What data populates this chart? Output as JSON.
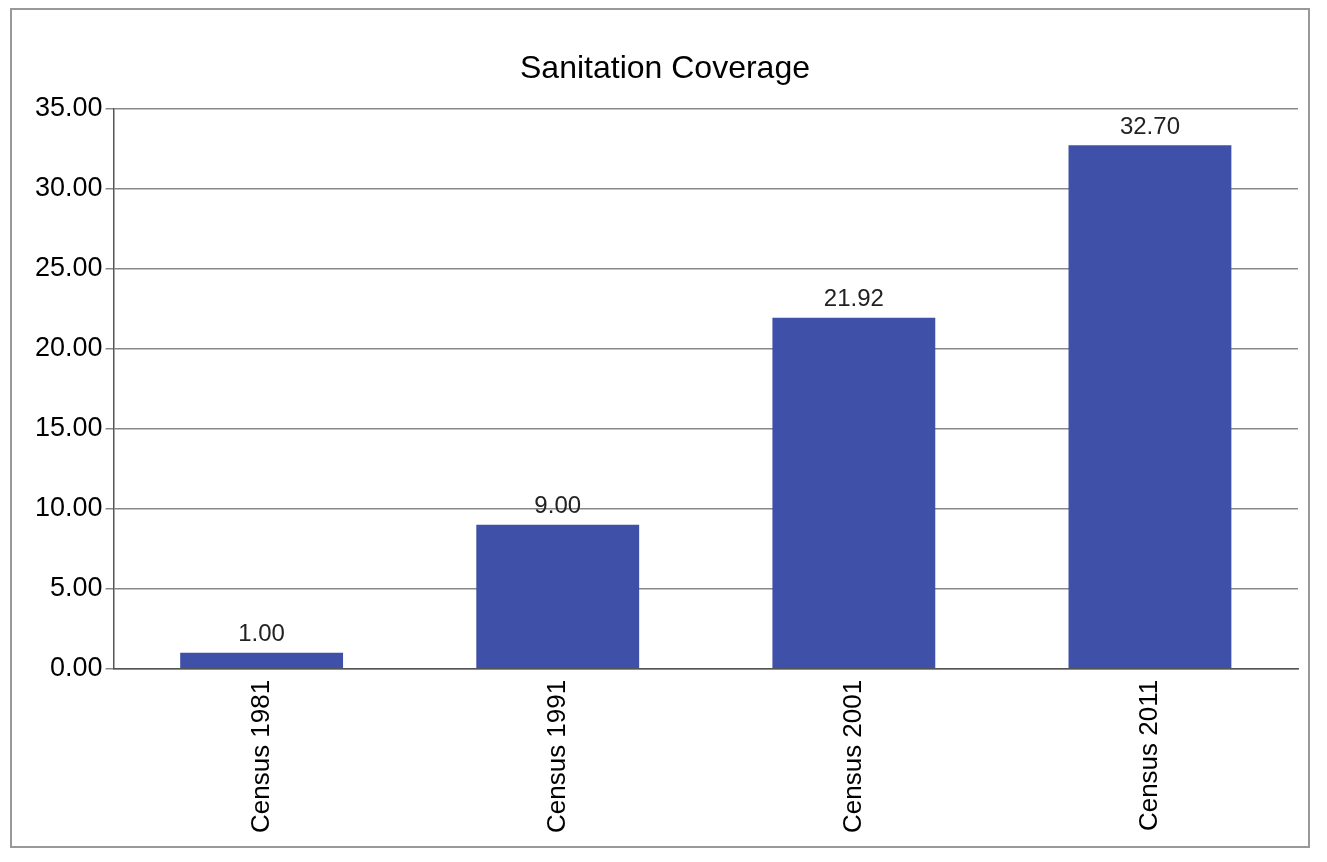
{
  "chart_data": {
    "type": "bar",
    "title": "Sanitation Coverage",
    "categories": [
      "Census 1981",
      "Census 1991",
      "Census 2001",
      "Census 2011"
    ],
    "values": [
      1.0,
      9.0,
      21.92,
      32.7
    ],
    "value_labels": [
      "1.00",
      "9.00",
      "21.92",
      "32.70"
    ],
    "color": "#3f50a8",
    "ylim": [
      0,
      35
    ],
    "yticks": [
      {
        "value": 0,
        "label": "0.00"
      },
      {
        "value": 5,
        "label": "5.00"
      },
      {
        "value": 10,
        "label": "10.00"
      },
      {
        "value": 15,
        "label": "15.00"
      },
      {
        "value": 20,
        "label": "20.00"
      },
      {
        "value": 25,
        "label": "25.00"
      },
      {
        "value": 30,
        "label": "30.00"
      },
      {
        "value": 35,
        "label": "35.00"
      }
    ],
    "grid": "y",
    "legend": false
  }
}
